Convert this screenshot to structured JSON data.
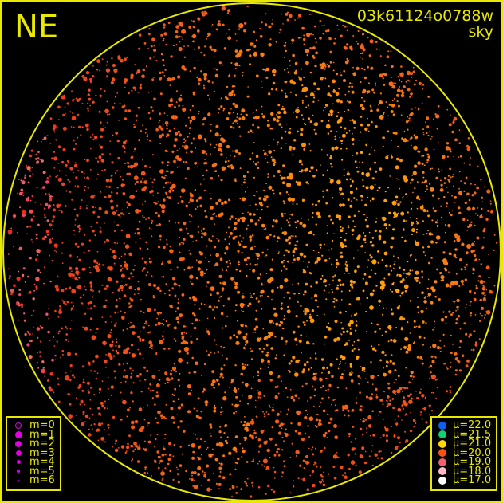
{
  "direction_label": "NE",
  "frame_id": "03k61124o0788w",
  "frame_type": "sky",
  "colors": {
    "frame": "#e8e800",
    "background": "#000000",
    "magnitude_marker": "#e000e0"
  },
  "magnitude_legend": [
    {
      "label": "m=0",
      "style": "ring",
      "size": 8
    },
    {
      "label": "m=1",
      "style": "dot",
      "size": 9
    },
    {
      "label": "m=2",
      "style": "dot",
      "size": 8
    },
    {
      "label": "m=3",
      "style": "dot",
      "size": 7
    },
    {
      "label": "m=4",
      "style": "dot",
      "size": 5
    },
    {
      "label": "m=5",
      "style": "dot",
      "size": 4
    },
    {
      "label": "m=6",
      "style": "dot",
      "size": 2
    }
  ],
  "surface_brightness_legend": [
    {
      "label": "μ=22.0",
      "color": "#1060f0"
    },
    {
      "label": "μ=21.5",
      "color": "#10d070"
    },
    {
      "label": "μ=21.0",
      "color": "#ffd800"
    },
    {
      "label": "μ=20.0",
      "color": "#ff5010"
    },
    {
      "label": "μ=19.0",
      "color": "#f06070"
    },
    {
      "label": "μ=18.0",
      "color": "#ffb8c8"
    },
    {
      "label": "μ=17.0",
      "color": "#ffffff"
    }
  ]
}
